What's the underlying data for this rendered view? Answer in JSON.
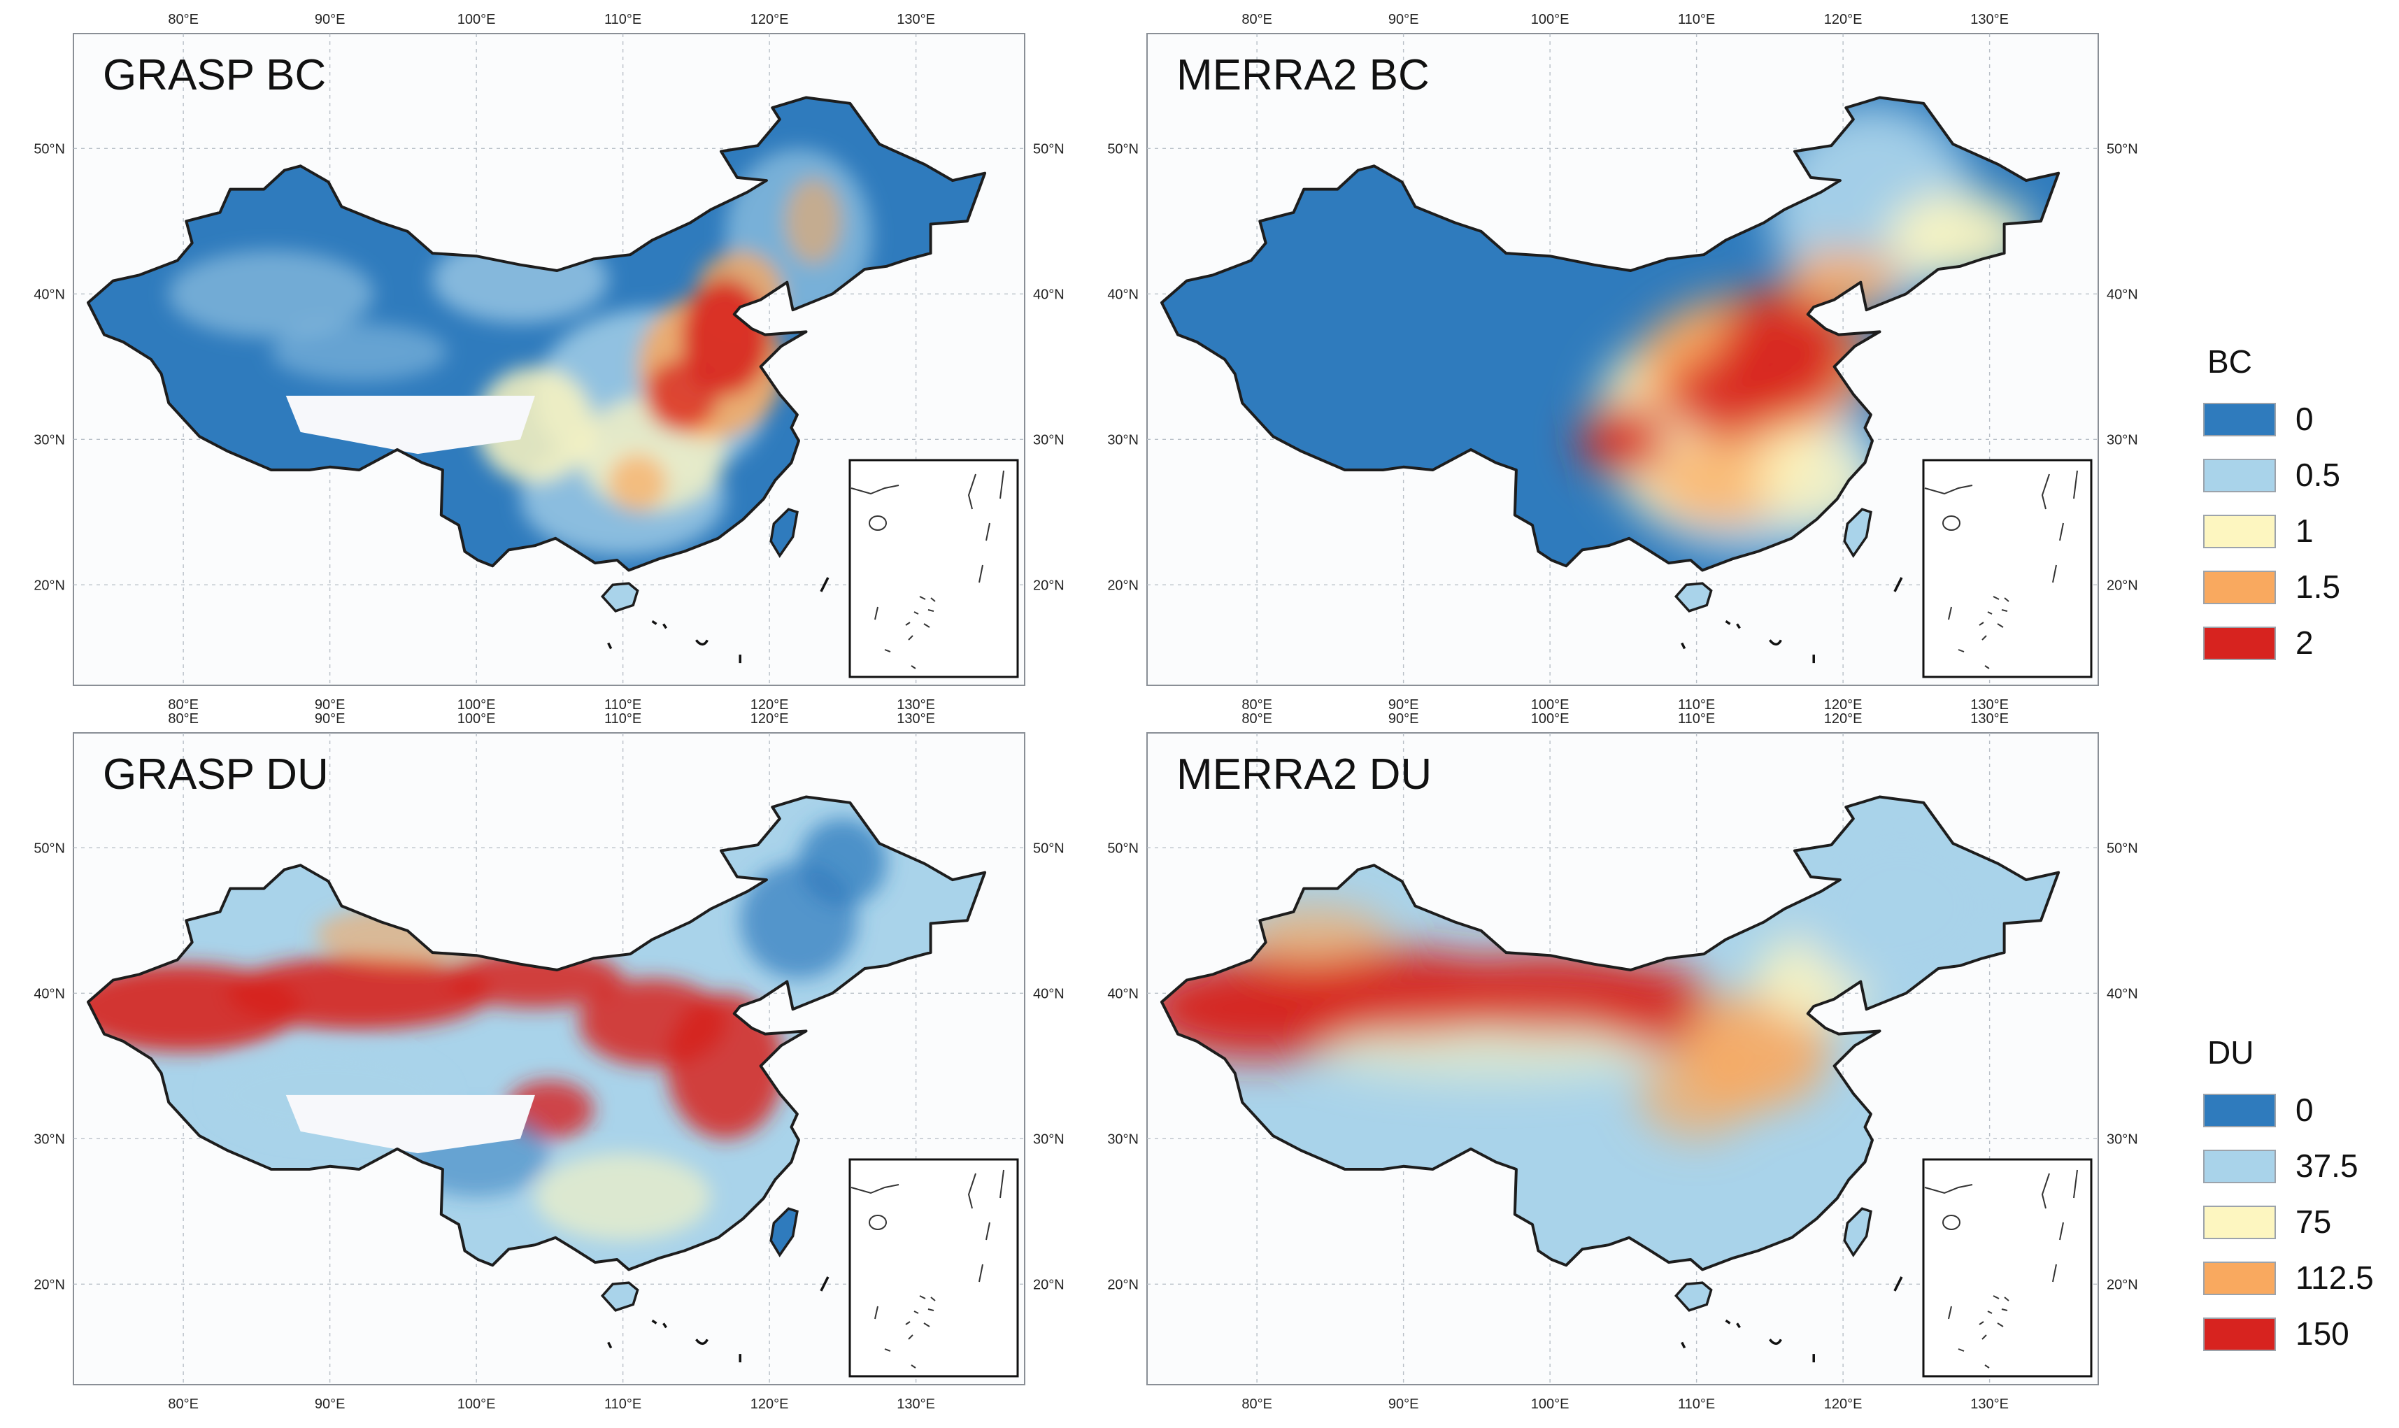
{
  "panels": [
    {
      "title": "GRASP BC",
      "scheme": "grasp_bc"
    },
    {
      "title": "MERRA2 BC",
      "scheme": "merra_bc"
    },
    {
      "title": "GRASP DU",
      "scheme": "grasp_du"
    },
    {
      "title": "MERRA2 DU",
      "scheme": "merra_du"
    }
  ],
  "lon_labels": [
    "80°E",
    "90°E",
    "100°E",
    "110°E",
    "120°E",
    "130°E"
  ],
  "lat_labels": [
    "50°N",
    "40°N",
    "30°N",
    "20°N"
  ],
  "legend_bc": {
    "title": "BC",
    "items": [
      {
        "value": "0",
        "color": "#2f7bbd"
      },
      {
        "value": "0.5",
        "color": "#a9d3ea"
      },
      {
        "value": "1",
        "color": "#fdf6c0"
      },
      {
        "value": "1.5",
        "color": "#f9a95f"
      },
      {
        "value": "2",
        "color": "#d7231f"
      }
    ]
  },
  "legend_du": {
    "title": "DU",
    "items": [
      {
        "value": "0",
        "color": "#2f7bbd"
      },
      {
        "value": "37.5",
        "color": "#a9d3ea"
      },
      {
        "value": "75",
        "color": "#fdf6c0"
      },
      {
        "value": "112.5",
        "color": "#f9a95f"
      },
      {
        "value": "150",
        "color": "#d7231f"
      }
    ]
  },
  "colors": {
    "dark_blue": "#2f7bbd",
    "light_blue": "#a9d3ea",
    "pale_yellow": "#fdf6c0",
    "orange": "#f9a95f",
    "red": "#d7231f",
    "border": "#1d1d1d"
  }
}
